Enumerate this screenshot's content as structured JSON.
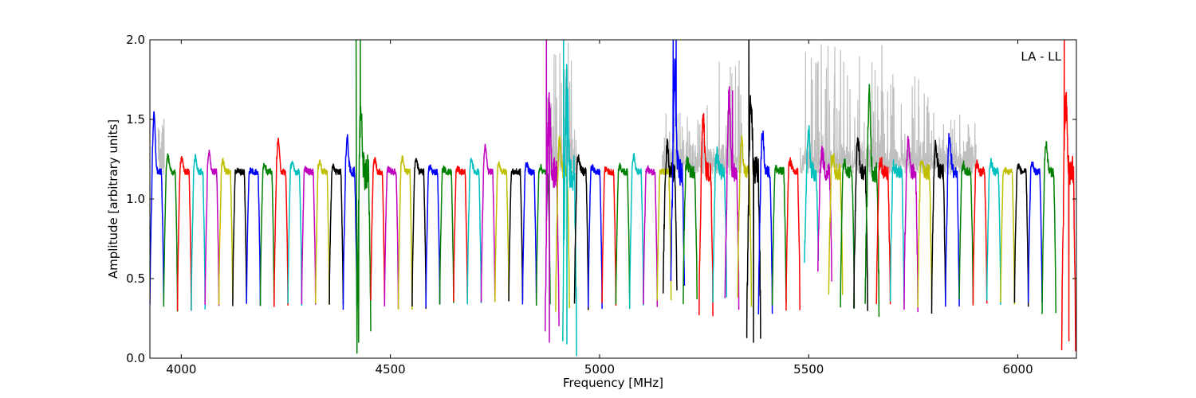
{
  "chart_data": {
    "type": "line",
    "title": "",
    "annotation": "LA - LL",
    "xlabel": "Frequency [MHz]",
    "ylabel": "Amplitude [arbitrary units]",
    "xlim": [
      3925,
      6140
    ],
    "ylim": [
      0.0,
      2.0
    ],
    "x_ticks": [
      4000,
      4500,
      5000,
      5500,
      6000
    ],
    "x_tick_labels": [
      "4000",
      "4500",
      "5000",
      "5500",
      "6000"
    ],
    "y_ticks": [
      0.0,
      0.5,
      1.0,
      1.5,
      2.0
    ],
    "y_tick_labels": [
      "0.0",
      "0.5",
      "1.0",
      "1.5",
      "2.0"
    ],
    "grid": false,
    "legend": "none",
    "background_series_color": "#bfbfbf",
    "channel_width_mhz": 33,
    "series": [
      {
        "color": "#0000ff",
        "start": 3925,
        "peak": 1.54,
        "floor": 0.3,
        "noise": 0.02,
        "spikes": []
      },
      {
        "color": "#008000",
        "start": 3958,
        "peak": 1.28,
        "floor": 0.26,
        "noise": 0.02,
        "spikes": []
      },
      {
        "color": "#ff0000",
        "start": 3991,
        "peak": 1.27,
        "floor": 0.27,
        "noise": 0.02,
        "spikes": []
      },
      {
        "color": "#00bfbf",
        "start": 4024,
        "peak": 1.27,
        "floor": 0.27,
        "noise": 0.02,
        "spikes": []
      },
      {
        "color": "#bf00bf",
        "start": 4057,
        "peak": 1.3,
        "floor": 0.27,
        "noise": 0.02,
        "spikes": []
      },
      {
        "color": "#bfbf00",
        "start": 4090,
        "peak": 1.25,
        "floor": 0.29,
        "noise": 0.02,
        "spikes": []
      },
      {
        "color": "#000000",
        "start": 4123,
        "peak": 1.19,
        "floor": 0.29,
        "noise": 0.02,
        "spikes": []
      },
      {
        "color": "#0000ff",
        "start": 4156,
        "peak": 1.19,
        "floor": 0.29,
        "noise": 0.02,
        "spikes": []
      },
      {
        "color": "#008000",
        "start": 4189,
        "peak": 1.23,
        "floor": 0.29,
        "noise": 0.02,
        "spikes": []
      },
      {
        "color": "#ff0000",
        "start": 4222,
        "peak": 1.38,
        "floor": 0.29,
        "noise": 0.02,
        "spikes": []
      },
      {
        "color": "#00bfbf",
        "start": 4255,
        "peak": 1.24,
        "floor": 0.29,
        "noise": 0.02,
        "spikes": []
      },
      {
        "color": "#bf00bf",
        "start": 4288,
        "peak": 1.2,
        "floor": 0.3,
        "noise": 0.02,
        "spikes": []
      },
      {
        "color": "#bfbf00",
        "start": 4321,
        "peak": 1.25,
        "floor": 0.28,
        "noise": 0.02,
        "spikes": []
      },
      {
        "color": "#000000",
        "start": 4354,
        "peak": 1.21,
        "floor": 0.29,
        "noise": 0.02,
        "spikes": []
      },
      {
        "color": "#0000ff",
        "start": 4387,
        "peak": 1.39,
        "floor": 0.25,
        "noise": 0.03,
        "spikes": []
      },
      {
        "color": "#008000",
        "start": 4420,
        "peak": 1.6,
        "floor": 0.07,
        "noise": 0.12,
        "spikes": [
          [
            4418,
            2.0
          ],
          [
            4428,
            2.0
          ],
          [
            4424,
            0.1
          ]
        ]
      },
      {
        "color": "#ff0000",
        "start": 4453,
        "peak": 1.26,
        "floor": 0.3,
        "noise": 0.02,
        "spikes": []
      },
      {
        "color": "#bf00bf",
        "start": 4486,
        "peak": 1.2,
        "floor": 0.28,
        "noise": 0.02,
        "spikes": []
      },
      {
        "color": "#bfbf00",
        "start": 4519,
        "peak": 1.27,
        "floor": 0.26,
        "noise": 0.02,
        "spikes": []
      },
      {
        "color": "#000000",
        "start": 4552,
        "peak": 1.26,
        "floor": 0.28,
        "noise": 0.02,
        "spikes": []
      },
      {
        "color": "#0000ff",
        "start": 4585,
        "peak": 1.21,
        "floor": 0.28,
        "noise": 0.02,
        "spikes": []
      },
      {
        "color": "#008000",
        "start": 4618,
        "peak": 1.2,
        "floor": 0.29,
        "noise": 0.02,
        "spikes": []
      },
      {
        "color": "#ff0000",
        "start": 4651,
        "peak": 1.2,
        "floor": 0.29,
        "noise": 0.02,
        "spikes": []
      },
      {
        "color": "#00bfbf",
        "start": 4684,
        "peak": 1.26,
        "floor": 0.29,
        "noise": 0.02,
        "spikes": []
      },
      {
        "color": "#bf00bf",
        "start": 4717,
        "peak": 1.34,
        "floor": 0.29,
        "noise": 0.02,
        "spikes": []
      },
      {
        "color": "#bfbf00",
        "start": 4750,
        "peak": 1.23,
        "floor": 0.3,
        "noise": 0.02,
        "spikes": []
      },
      {
        "color": "#000000",
        "start": 4783,
        "peak": 1.18,
        "floor": 0.3,
        "noise": 0.02,
        "spikes": []
      },
      {
        "color": "#0000ff",
        "start": 4816,
        "peak": 1.23,
        "floor": 0.29,
        "noise": 0.02,
        "spikes": []
      },
      {
        "color": "#008000",
        "start": 4849,
        "peak": 1.21,
        "floor": 0.29,
        "noise": 0.02,
        "spikes": []
      },
      {
        "color": "#bf00bf",
        "start": 4870,
        "peak": 1.6,
        "floor": 0.1,
        "noise": 0.1,
        "spikes": [
          [
            4873,
            2.0
          ],
          [
            4880,
            0.1
          ]
        ]
      },
      {
        "color": "#bfbf00",
        "start": 4895,
        "peak": 1.39,
        "floor": 0.24,
        "noise": 0.05,
        "spikes": []
      },
      {
        "color": "#00bfbf",
        "start": 4912,
        "peak": 1.75,
        "floor": 0.09,
        "noise": 0.12,
        "spikes": [
          [
            4914,
            2.0
          ],
          [
            4922,
            0.09
          ]
        ]
      },
      {
        "color": "#000000",
        "start": 4940,
        "peak": 1.28,
        "floor": 0.27,
        "noise": 0.03,
        "spikes": []
      },
      {
        "color": "#0000ff",
        "start": 4973,
        "peak": 1.21,
        "floor": 0.28,
        "noise": 0.02,
        "spikes": []
      },
      {
        "color": "#ff0000",
        "start": 5006,
        "peak": 1.2,
        "floor": 0.29,
        "noise": 0.02,
        "spikes": []
      },
      {
        "color": "#008000",
        "start": 5039,
        "peak": 1.22,
        "floor": 0.28,
        "noise": 0.02,
        "spikes": []
      },
      {
        "color": "#00bfbf",
        "start": 5072,
        "peak": 1.28,
        "floor": 0.28,
        "noise": 0.02,
        "spikes": []
      },
      {
        "color": "#bf00bf",
        "start": 5105,
        "peak": 1.2,
        "floor": 0.28,
        "noise": 0.02,
        "spikes": []
      },
      {
        "color": "#bfbf00",
        "start": 5138,
        "peak": 1.18,
        "floor": 0.3,
        "noise": 0.02,
        "spikes": []
      },
      {
        "color": "#000000",
        "start": 5152,
        "peak": 1.33,
        "floor": 0.35,
        "noise": 0.06,
        "spikes": []
      },
      {
        "color": "#0000ff",
        "start": 5170,
        "peak": 1.8,
        "floor": 0.34,
        "noise": 0.1,
        "spikes": [
          [
            5176,
            2.0
          ],
          [
            5183,
            2.0
          ]
        ]
      },
      {
        "color": "#008000",
        "start": 5200,
        "peak": 1.24,
        "floor": 0.31,
        "noise": 0.04,
        "spikes": []
      },
      {
        "color": "#ff0000",
        "start": 5238,
        "peak": 1.52,
        "floor": 0.27,
        "noise": 0.06,
        "spikes": []
      },
      {
        "color": "#00bfbf",
        "start": 5271,
        "peak": 1.3,
        "floor": 0.3,
        "noise": 0.05,
        "spikes": []
      },
      {
        "color": "#bf00bf",
        "start": 5300,
        "peak": 1.68,
        "floor": 0.3,
        "noise": 0.06,
        "spikes": [
          [
            5318,
            1.68
          ]
        ]
      },
      {
        "color": "#bfbf00",
        "start": 5330,
        "peak": 1.37,
        "floor": 0.3,
        "noise": 0.04,
        "spikes": []
      },
      {
        "color": "#000000",
        "start": 5352,
        "peak": 1.64,
        "floor": 0.1,
        "noise": 0.1,
        "spikes": [
          [
            5357,
            2.0
          ],
          [
            5368,
            0.1
          ]
        ]
      },
      {
        "color": "#0000ff",
        "start": 5380,
        "peak": 1.42,
        "floor": 0.25,
        "noise": 0.04,
        "spikes": []
      },
      {
        "color": "#008000",
        "start": 5413,
        "peak": 1.2,
        "floor": 0.28,
        "noise": 0.03,
        "spikes": []
      },
      {
        "color": "#ff0000",
        "start": 5446,
        "peak": 1.25,
        "floor": 0.28,
        "noise": 0.03,
        "spikes": []
      },
      {
        "color": "#00bfbf",
        "start": 5490,
        "peak": 1.43,
        "floor": 0.5,
        "noise": 0.06,
        "spikes": []
      },
      {
        "color": "#bf00bf",
        "start": 5522,
        "peak": 1.31,
        "floor": 0.46,
        "noise": 0.06,
        "spikes": []
      },
      {
        "color": "#bfbf00",
        "start": 5548,
        "peak": 1.3,
        "floor": 0.36,
        "noise": 0.06,
        "spikes": []
      },
      {
        "color": "#008000",
        "start": 5576,
        "peak": 1.25,
        "floor": 0.3,
        "noise": 0.04,
        "spikes": []
      },
      {
        "color": "#000000",
        "start": 5608,
        "peak": 1.38,
        "floor": 0.29,
        "noise": 0.05,
        "spikes": []
      },
      {
        "color": "#008000",
        "start": 5635,
        "peak": 1.66,
        "floor": 0.27,
        "noise": 0.07,
        "spikes": []
      },
      {
        "color": "#ff0000",
        "start": 5662,
        "peak": 1.25,
        "floor": 0.26,
        "noise": 0.05,
        "spikes": []
      },
      {
        "color": "#00bfbf",
        "start": 5695,
        "peak": 1.22,
        "floor": 0.3,
        "noise": 0.05,
        "spikes": []
      },
      {
        "color": "#bf00bf",
        "start": 5728,
        "peak": 1.36,
        "floor": 0.28,
        "noise": 0.05,
        "spikes": []
      },
      {
        "color": "#bfbf00",
        "start": 5761,
        "peak": 1.26,
        "floor": 0.28,
        "noise": 0.05,
        "spikes": []
      },
      {
        "color": "#000000",
        "start": 5794,
        "peak": 1.35,
        "floor": 0.28,
        "noise": 0.05,
        "spikes": []
      },
      {
        "color": "#0000ff",
        "start": 5827,
        "peak": 1.41,
        "floor": 0.28,
        "noise": 0.05,
        "spikes": []
      },
      {
        "color": "#008000",
        "start": 5860,
        "peak": 1.22,
        "floor": 0.29,
        "noise": 0.03,
        "spikes": []
      },
      {
        "color": "#ff0000",
        "start": 5893,
        "peak": 1.23,
        "floor": 0.29,
        "noise": 0.03,
        "spikes": []
      },
      {
        "color": "#00bfbf",
        "start": 5926,
        "peak": 1.24,
        "floor": 0.29,
        "noise": 0.03,
        "spikes": []
      },
      {
        "color": "#bfbf00",
        "start": 5959,
        "peak": 1.19,
        "floor": 0.29,
        "noise": 0.02,
        "spikes": []
      },
      {
        "color": "#000000",
        "start": 5992,
        "peak": 1.22,
        "floor": 0.29,
        "noise": 0.02,
        "spikes": []
      },
      {
        "color": "#0000ff",
        "start": 6025,
        "peak": 1.23,
        "floor": 0.29,
        "noise": 0.02,
        "spikes": []
      },
      {
        "color": "#008000",
        "start": 6058,
        "peak": 1.36,
        "floor": 0.23,
        "noise": 0.03,
        "spikes": []
      },
      {
        "color": "#ff0000",
        "start": 6105,
        "peak": 1.62,
        "floor": 0.11,
        "noise": 0.1,
        "spikes": [
          [
            6111,
            2.0
          ],
          [
            6122,
            0.11
          ]
        ]
      }
    ],
    "background_series": [
      {
        "start": 3945,
        "end": 3960,
        "peak": 1.58
      },
      {
        "start": 4875,
        "end": 4945,
        "peak": 2.0
      },
      {
        "start": 5150,
        "end": 5200,
        "peak": 1.55
      },
      {
        "start": 5200,
        "end": 5260,
        "peak": 1.6
      },
      {
        "start": 5260,
        "end": 5340,
        "peak": 1.88
      },
      {
        "start": 5480,
        "end": 5560,
        "peak": 2.0
      },
      {
        "start": 5560,
        "end": 5680,
        "peak": 2.0
      },
      {
        "start": 5680,
        "end": 5790,
        "peak": 1.8
      },
      {
        "start": 5790,
        "end": 5870,
        "peak": 1.55
      },
      {
        "start": 5870,
        "end": 5900,
        "peak": 1.5
      }
    ]
  }
}
